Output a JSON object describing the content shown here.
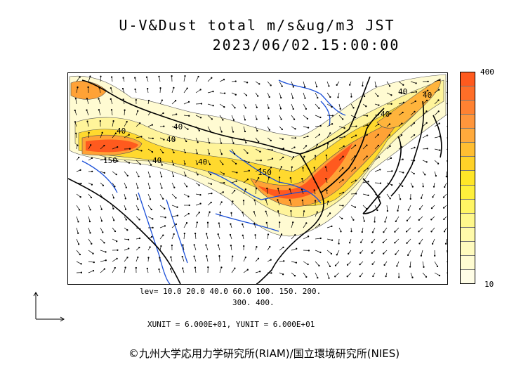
{
  "title": {
    "line1": "U-V&Dust total m/s&ug/m3 JST",
    "line2": "2023/06/02.15:00:00"
  },
  "colorbar": {
    "max_label": "400",
    "min_label": "10",
    "colors": [
      "#ff5a1e",
      "#ff6e28",
      "#ff8232",
      "#ff963c",
      "#ffaa3c",
      "#ffbe32",
      "#ffd228",
      "#ffe628",
      "#fff03c",
      "#fff564",
      "#fff88c",
      "#fffaaa",
      "#fffbbe",
      "#fffcd2",
      "#fffde6"
    ]
  },
  "levels": {
    "line1": "lev= 10.0 20.0 40.0 60.0 100. 150. 200.",
    "line2": "300. 400."
  },
  "units": "XUNIT = 6.000E+01, YUNIT = 6.000E+01",
  "contour_labels": [
    "40",
    "40",
    "40",
    "150",
    "40",
    "40",
    "150",
    "40",
    "40",
    "40"
  ],
  "copyright": "©九州大学応用力学研究所(RIAM)/国立環境研究所(NIES)"
}
